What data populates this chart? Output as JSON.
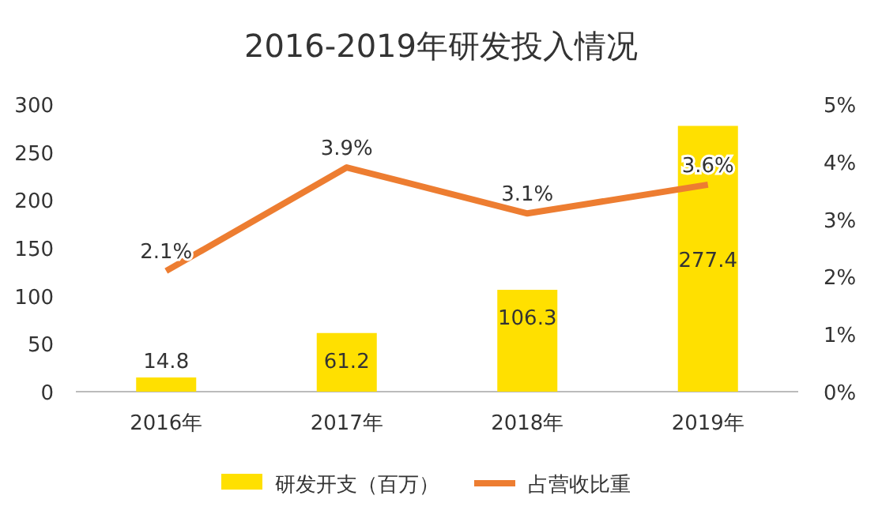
{
  "chart_data": {
    "type": "bar",
    "title": "2016-2019年研发投入情况",
    "categories": [
      "2016年",
      "2017年",
      "2018年",
      "2019年"
    ],
    "series": [
      {
        "name": "研发开支（百万）",
        "color": "#ffe000",
        "values": [
          14.8,
          61.2,
          106.3,
          277.4
        ],
        "value_labels": [
          "14.8",
          "61.2",
          "106.3",
          "277.4"
        ]
      },
      {
        "name": "占营收比重",
        "type": "line",
        "axis": "y2",
        "color": "#ed7d31",
        "values": [
          2.1,
          3.9,
          3.1,
          3.6
        ],
        "value_labels": [
          "2.1%",
          "3.9%",
          "3.1%",
          "3.6%"
        ]
      }
    ],
    "ylim": [
      0,
      300
    ],
    "yticks": [
      0,
      50,
      100,
      150,
      200,
      250,
      300
    ],
    "y2lim": [
      0,
      5
    ],
    "y2ticks": [
      {
        "value": 0,
        "label": "0%"
      },
      {
        "value": 1,
        "label": "1%"
      },
      {
        "value": 2,
        "label": "2%"
      },
      {
        "value": 3,
        "label": "3%"
      },
      {
        "value": 4,
        "label": "4%"
      },
      {
        "value": 5,
        "label": "5%"
      }
    ],
    "grid": false,
    "legend": "bottom",
    "marker": "none",
    "line_style": "solid"
  }
}
